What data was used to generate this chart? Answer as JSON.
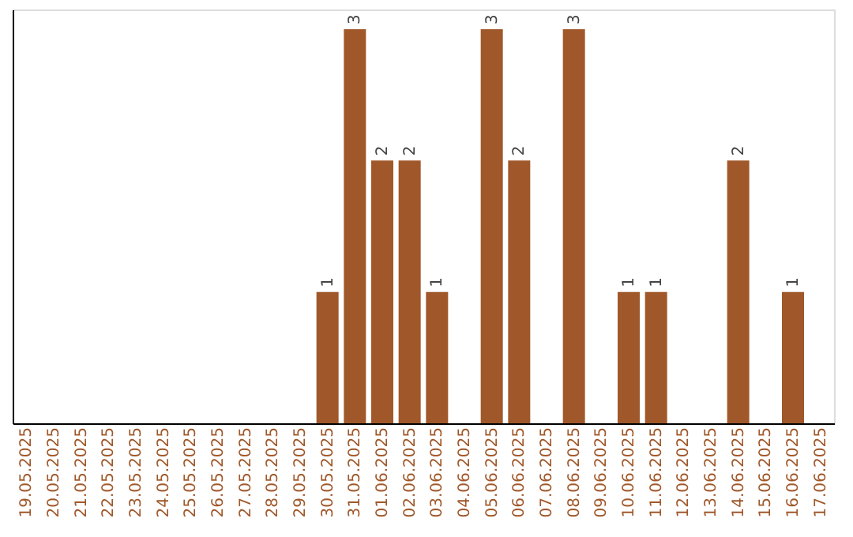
{
  "chart_data": {
    "type": "bar",
    "categories": [
      "19.05.2025",
      "20.05.2025",
      "21.05.2025",
      "22.05.2025",
      "23.05.2025",
      "24.05.2025",
      "25.05.2025",
      "26.05.2025",
      "27.05.2025",
      "28.05.2025",
      "29.05.2025",
      "30.05.2025",
      "31.05.2025",
      "01.06.2025",
      "02.06.2025",
      "03.06.2025",
      "04.06.2025",
      "05.06.2025",
      "06.06.2025",
      "07.06.2025",
      "08.06.2025",
      "09.06.2025",
      "10.06.2025",
      "11.06.2025",
      "12.06.2025",
      "13.06.2025",
      "14.06.2025",
      "15.06.2025",
      "16.06.2025",
      "17.06.2025"
    ],
    "values": [
      0,
      0,
      0,
      0,
      0,
      0,
      0,
      0,
      0,
      0,
      0,
      1,
      3,
      2,
      2,
      1,
      0,
      3,
      2,
      0,
      3,
      0,
      1,
      1,
      0,
      0,
      2,
      0,
      1,
      0
    ],
    "value_labels": [
      null,
      null,
      null,
      null,
      null,
      null,
      null,
      null,
      null,
      null,
      null,
      "1",
      "3",
      "2",
      "2",
      "1",
      null,
      "3",
      "2",
      null,
      "3",
      null,
      "1",
      "1",
      null,
      null,
      "2",
      null,
      "1",
      null
    ],
    "color": "#a0582a",
    "grid": false,
    "tick_labels": "x"
  }
}
